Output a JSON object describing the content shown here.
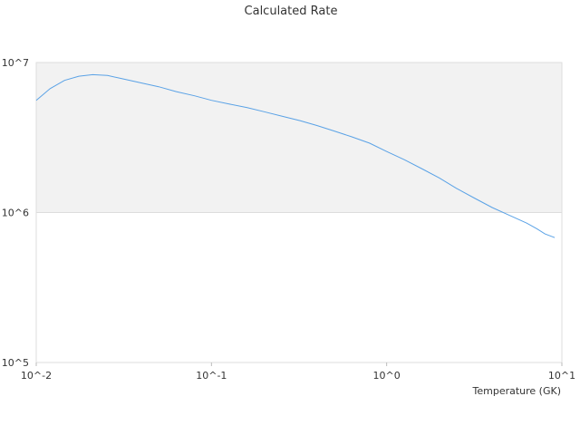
{
  "chart_data": {
    "type": "line",
    "title": "Calculated Rate",
    "xlabel": "Temperature (GK)",
    "ylabel": "",
    "x_scale": "log",
    "y_scale": "log",
    "xlim": [
      0.01,
      10
    ],
    "ylim": [
      100000,
      10000000
    ],
    "x_ticks": [
      "10^-2",
      "10^-1",
      "10^0",
      "10^1"
    ],
    "y_ticks": [
      "10^5",
      "10^6",
      "10^7"
    ],
    "shaded_band": {
      "from": 1000000,
      "to": 10000000,
      "color": "#f2f2f2"
    },
    "grid": true,
    "legend": "none",
    "series": [
      {
        "color": "#5aa2e6",
        "x": [
          0.01,
          0.012,
          0.0145,
          0.0175,
          0.021,
          0.0255,
          0.031,
          0.04,
          0.05,
          0.063,
          0.08,
          0.1,
          0.125,
          0.16,
          0.2,
          0.25,
          0.32,
          0.4,
          0.5,
          0.63,
          0.8,
          1.0,
          1.26,
          1.6,
          2.0,
          2.5,
          3.16,
          4.0,
          5.0,
          6.3,
          7.2,
          8.0,
          9.1
        ],
        "y": [
          5600000,
          6700000,
          7600000,
          8100000,
          8300000,
          8200000,
          7800000,
          7300000,
          6900000,
          6400000,
          6000000,
          5600000,
          5300000,
          5000000,
          4700000,
          4400000,
          4100000,
          3800000,
          3500000,
          3200000,
          2900000,
          2550000,
          2250000,
          1950000,
          1700000,
          1450000,
          1250000,
          1080000,
          960000,
          850000,
          780000,
          720000,
          680000
        ]
      }
    ]
  }
}
